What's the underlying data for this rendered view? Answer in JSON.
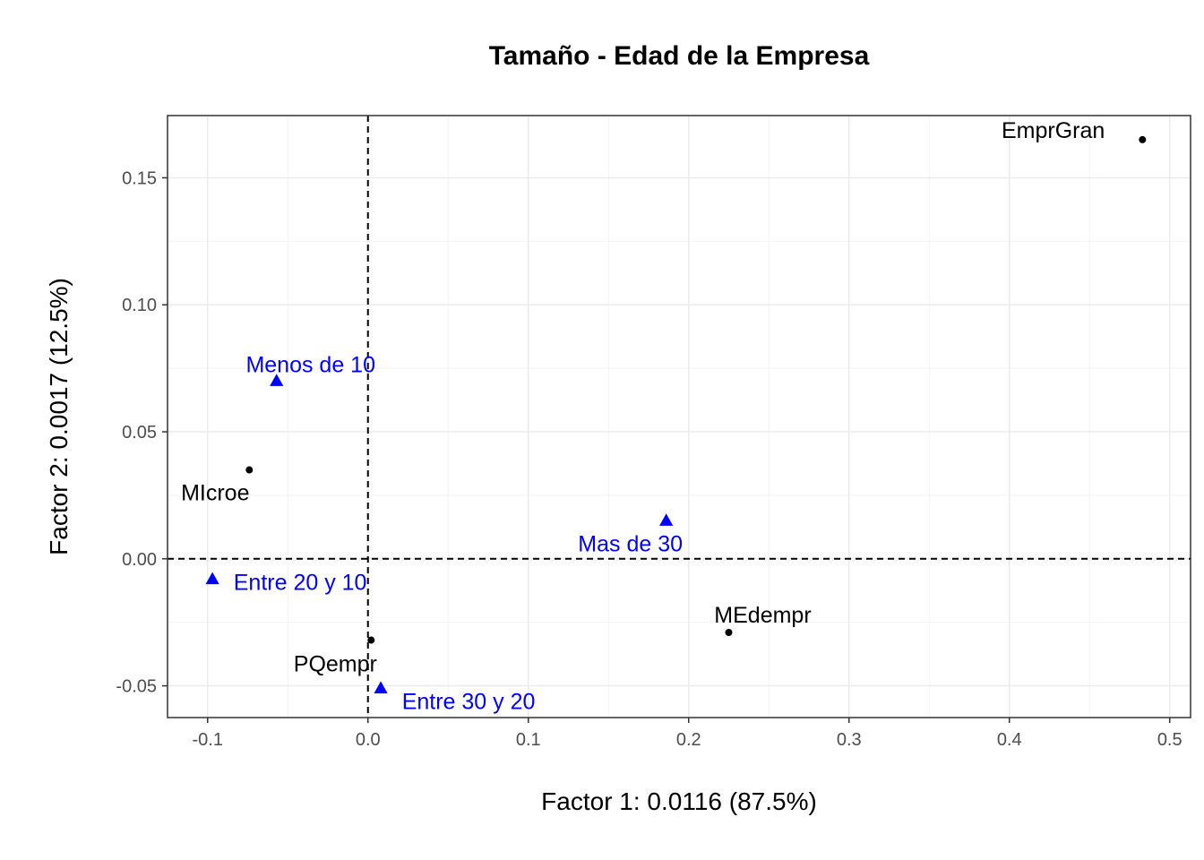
{
  "chart_data": {
    "type": "scatter",
    "title": "Tamaño - Edad de la Empresa",
    "xlabel": "Factor 1: 0.0116 (87.5%)",
    "ylabel": "Factor 2: 0.0017 (12.5%)",
    "xlim": [
      -0.125,
      0.513
    ],
    "ylim": [
      -0.0625,
      0.1745
    ],
    "x_ticks": [
      {
        "value": -0.1,
        "label": "-0.1"
      },
      {
        "value": 0.0,
        "label": "0.0"
      },
      {
        "value": 0.1,
        "label": "0.1"
      },
      {
        "value": 0.2,
        "label": "0.2"
      },
      {
        "value": 0.3,
        "label": "0.3"
      },
      {
        "value": 0.4,
        "label": "0.4"
      },
      {
        "value": 0.5,
        "label": "0.5"
      }
    ],
    "y_ticks": [
      {
        "value": -0.05,
        "label": "-0.05"
      },
      {
        "value": 0.0,
        "label": "0.00"
      },
      {
        "value": 0.05,
        "label": "0.05"
      },
      {
        "value": 0.1,
        "label": "0.10"
      },
      {
        "value": 0.15,
        "label": "0.15"
      }
    ],
    "grid": true,
    "reference_lines": {
      "x": 0,
      "y": 0,
      "style": "dashed"
    },
    "series": [
      {
        "marker": "circle",
        "color": "#000000",
        "points": [
          {
            "label": "EmprGran",
            "x": 0.483,
            "y": 0.165
          },
          {
            "label": "MIcroe",
            "x": -0.074,
            "y": 0.035
          },
          {
            "label": "MEdempr",
            "x": 0.225,
            "y": -0.029
          },
          {
            "label": "PQempr",
            "x": 0.002,
            "y": -0.032
          }
        ]
      },
      {
        "marker": "triangle",
        "color": "#0000ff",
        "points": [
          {
            "label": "Menos de 10",
            "x": -0.057,
            "y": 0.07
          },
          {
            "label": "Mas de 30",
            "x": 0.186,
            "y": 0.015
          },
          {
            "label": "Entre 20 y 10",
            "x": -0.097,
            "y": -0.008
          },
          {
            "label": "Entre 30 y 20",
            "x": 0.008,
            "y": -0.051
          }
        ]
      }
    ]
  }
}
